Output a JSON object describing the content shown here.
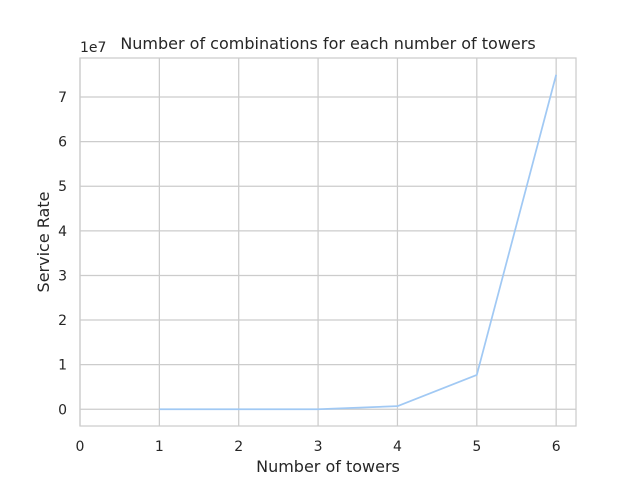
{
  "chart_data": {
    "type": "line",
    "title": "Number of combinations for each number of towers",
    "xlabel": "Number of towers",
    "ylabel": "Service Rate",
    "y_offset_label": "1e7",
    "x": [
      1,
      2,
      3,
      4,
      5,
      6
    ],
    "series": [
      {
        "values": [
          0,
          15,
          455,
          700000,
          7700000,
          75000000
        ]
      }
    ],
    "xlim": [
      0,
      6.25
    ],
    "ylim": [
      -3750000,
      78750000
    ],
    "x_ticks": [
      0,
      1,
      2,
      3,
      4,
      5,
      6
    ],
    "y_ticks": [
      0,
      10000000,
      20000000,
      30000000,
      40000000,
      50000000,
      60000000,
      70000000
    ],
    "y_tick_labels": [
      "0",
      "1",
      "2",
      "3",
      "4",
      "5",
      "6",
      "7"
    ],
    "grid": true,
    "line_color": "#a1c9f4",
    "grid_color": "#cccccc",
    "text_color": "#262626"
  }
}
